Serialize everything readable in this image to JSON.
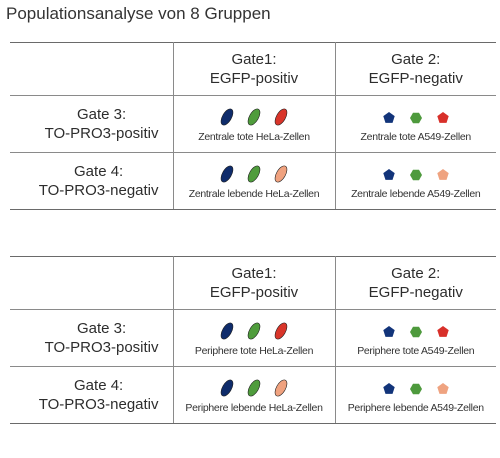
{
  "title": "Populationsanalyse von 8 Gruppen",
  "colors": {
    "hela_blue": "#0f2c6b",
    "hela_green": "#4f9c3c",
    "hela_red": "#d9352a",
    "hela_salmon": "#f0a27f",
    "a549_blue": "#12347a",
    "a549_green": "#4e9a3d",
    "a549_red": "#d8302a",
    "a549_salmon": "#efa380"
  },
  "tables": [
    {
      "header": {
        "gate1_line1": "Gate1:",
        "gate1_line2": "EGFP-positiv",
        "gate2_line1": "Gate 2:",
        "gate2_line2": "EGFP-negativ"
      },
      "rows": [
        {
          "label_line1": "Gate 3:",
          "label_line2": "TO-PRO3-positiv",
          "cell1": {
            "caption": "Zentrale tote HeLa-Zellen",
            "icons": [
              "blue-oval",
              "green-oval",
              "red-oval"
            ]
          },
          "cell2": {
            "caption": "Zentrale tote A549-Zellen",
            "icons": [
              "blue-pentagon",
              "green-hexagon",
              "red-pentagon"
            ]
          }
        },
        {
          "label_line1": "Gate 4:",
          "label_line2": "TO-PRO3-negativ",
          "cell1": {
            "caption": "Zentrale lebende HeLa-Zellen",
            "icons": [
              "blue-oval",
              "green-oval",
              "salmon-oval"
            ]
          },
          "cell2": {
            "caption": "Zentrale lebende A549-Zellen",
            "icons": [
              "blue-pentagon",
              "green-hexagon",
              "salmon-pentagon"
            ]
          }
        }
      ]
    },
    {
      "header": {
        "gate1_line1": "Gate1:",
        "gate1_line2": "EGFP-positiv",
        "gate2_line1": "Gate 2:",
        "gate2_line2": "EGFP-negativ"
      },
      "rows": [
        {
          "label_line1": "Gate 3:",
          "label_line2": "TO-PRO3-positiv",
          "cell1": {
            "caption": "Periphere tote HeLa-Zellen",
            "icons": [
              "blue-oval",
              "green-oval",
              "red-oval"
            ]
          },
          "cell2": {
            "caption": "Periphere tote A549-Zellen",
            "icons": [
              "blue-pentagon",
              "green-hexagon",
              "red-pentagon"
            ]
          }
        },
        {
          "label_line1": "Gate 4:",
          "label_line2": "TO-PRO3-negativ",
          "cell1": {
            "caption": "Periphere lebende HeLa-Zellen",
            "icons": [
              "blue-oval",
              "green-oval",
              "salmon-oval"
            ]
          },
          "cell2": {
            "caption": "Periphere lebende A549-Zellen",
            "icons": [
              "blue-pentagon",
              "green-hexagon",
              "salmon-pentagon"
            ]
          }
        }
      ]
    }
  ]
}
